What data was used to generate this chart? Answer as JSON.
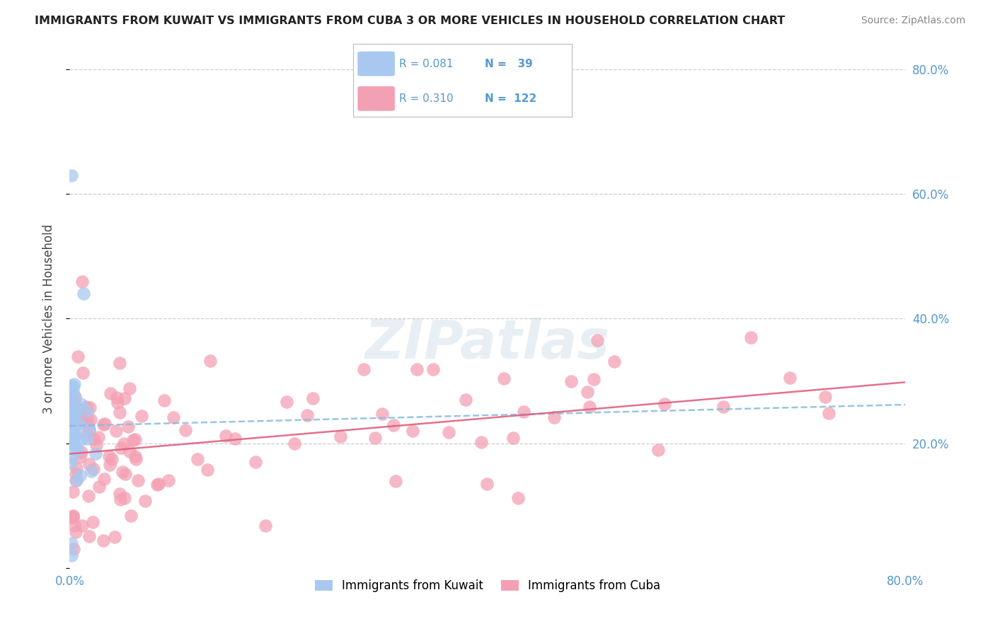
{
  "title": "IMMIGRANTS FROM KUWAIT VS IMMIGRANTS FROM CUBA 3 OR MORE VEHICLES IN HOUSEHOLD CORRELATION CHART",
  "source": "Source: ZipAtlas.com",
  "ylabel": "3 or more Vehicles in Household",
  "xlim": [
    0.0,
    0.8
  ],
  "ylim": [
    0.0,
    0.8
  ],
  "yticks_right": [
    0.8,
    0.6,
    0.4,
    0.2
  ],
  "ytick_labels_right": [
    "80.0%",
    "60.0%",
    "40.0%",
    "20.0%"
  ],
  "kuwait_color": "#a8c8f0",
  "cuba_color": "#f4a0b4",
  "kuwait_trend_color": "#88bbdd",
  "cuba_trend_color": "#e06080",
  "kuwait_R": 0.081,
  "kuwait_N": 39,
  "cuba_R": 0.31,
  "cuba_N": 122,
  "watermark": "ZIPatlas",
  "background_color": "#ffffff",
  "title_color": "#222222",
  "source_color": "#888888",
  "axis_label_color": "#444444",
  "tick_color": "#5599cc",
  "kuwait_trend_start_y": 0.228,
  "kuwait_trend_end_y": 0.262,
  "cuba_trend_start_y": 0.183,
  "cuba_trend_end_y": 0.298
}
